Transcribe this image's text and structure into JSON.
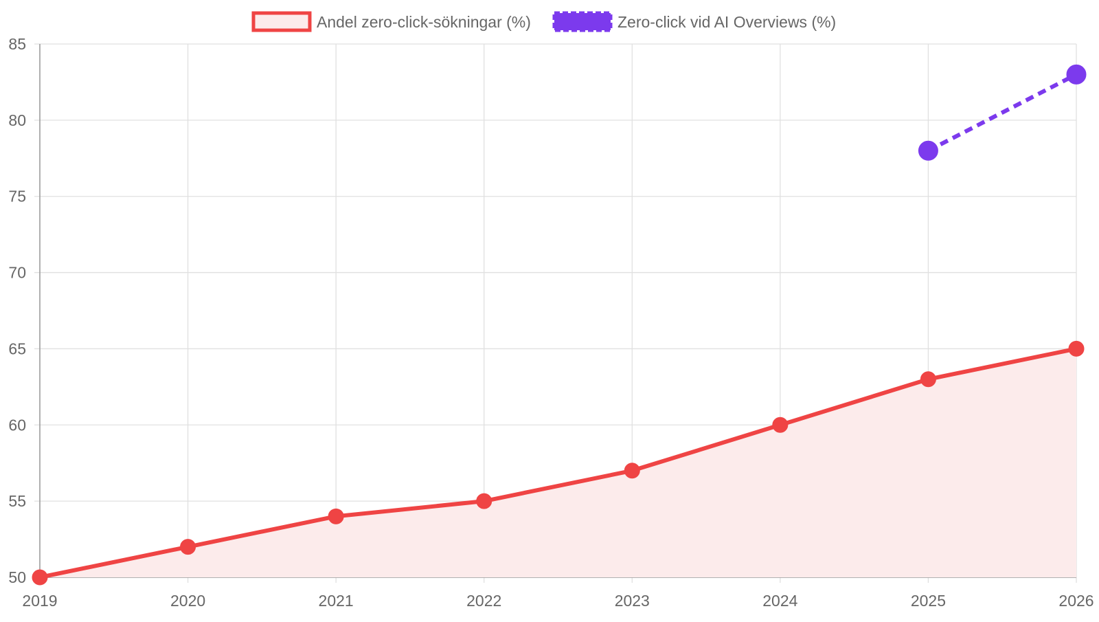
{
  "chart_data": {
    "type": "line",
    "title": "",
    "xlabel": "",
    "ylabel": "",
    "x": [
      "2019",
      "2020",
      "2021",
      "2022",
      "2023",
      "2024",
      "2025",
      "2026"
    ],
    "ylim": [
      50,
      85
    ],
    "yticks": [
      50,
      55,
      60,
      65,
      70,
      75,
      80,
      85
    ],
    "grid": true,
    "legend_position": "top",
    "series": [
      {
        "name": "Andel zero-click-sökningar (%)",
        "color": "#ef4444",
        "fill": "#fcebeb",
        "filled": true,
        "dashed": false,
        "values": [
          50,
          52,
          54,
          55,
          57,
          60,
          63,
          65
        ]
      },
      {
        "name": "Zero-click vid AI Overviews (%)",
        "color": "#7c3aed",
        "filled": false,
        "dashed": true,
        "values": [
          null,
          null,
          null,
          null,
          null,
          null,
          78,
          83
        ]
      }
    ]
  }
}
